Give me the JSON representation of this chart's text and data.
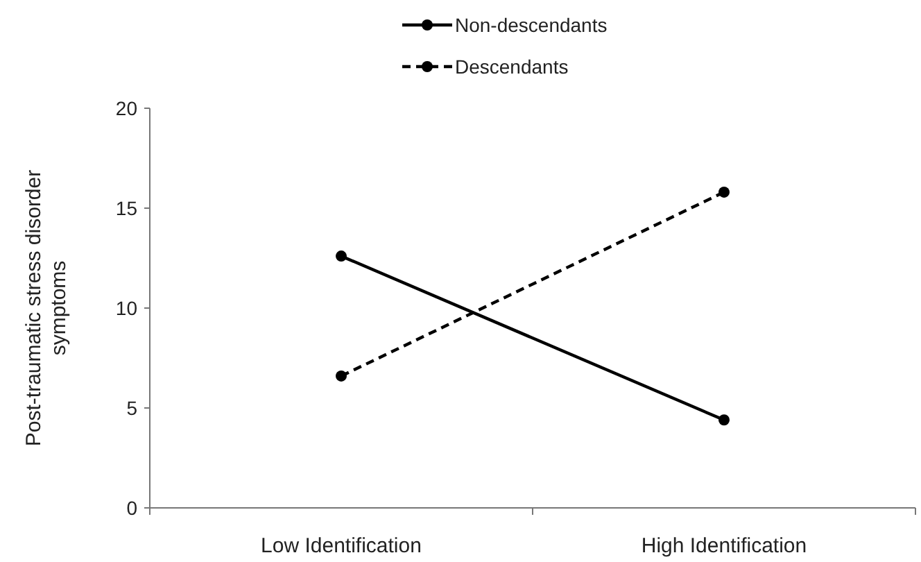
{
  "chart_data": {
    "type": "line",
    "ylabel": "Post-traumatic stress disorder symptoms",
    "categories": [
      "Low Identification",
      "High Identification"
    ],
    "series": [
      {
        "name": "Non-descendants",
        "color": "#000000",
        "values": [
          12.6,
          4.4
        ],
        "line_style": "solid"
      },
      {
        "name": "Descendants",
        "color": "#000000",
        "values": [
          6.6,
          15.8
        ],
        "line_style": "dashed"
      }
    ],
    "ylim": [
      0,
      20
    ],
    "yticks": [
      0,
      5,
      10,
      15,
      20
    ],
    "marker": "circle",
    "legend": "top",
    "grid": false
  }
}
